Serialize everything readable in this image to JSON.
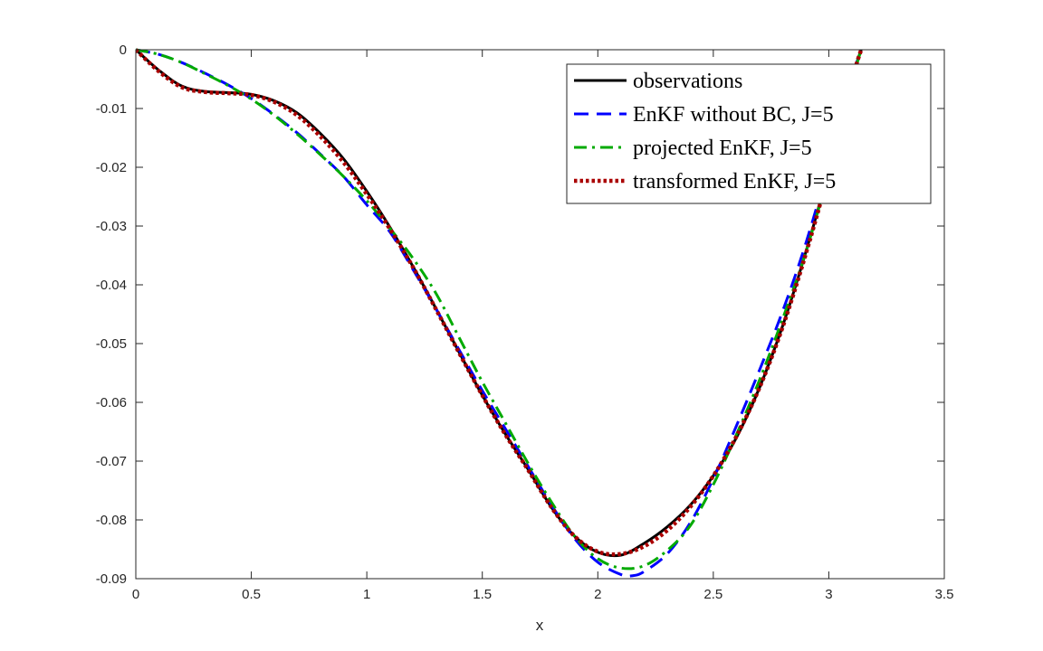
{
  "chart_data": {
    "type": "line",
    "title": "",
    "xlabel": "x",
    "ylabel": "",
    "xlim": [
      0,
      3.5
    ],
    "ylim": [
      -0.09,
      0
    ],
    "xticks": [
      "0",
      "0.5",
      "1",
      "1.5",
      "2",
      "2.5",
      "3",
      "3.5"
    ],
    "yticks": [
      "0",
      "-0.01",
      "-0.02",
      "-0.03",
      "-0.04",
      "-0.05",
      "-0.06",
      "-0.07",
      "-0.08",
      "-0.09"
    ],
    "legend_position": "top-right",
    "series": [
      {
        "name": "observations",
        "color": "#000000",
        "style": "solid",
        "x": [
          0,
          0.1,
          0.2,
          0.3,
          0.4,
          0.5,
          0.6,
          0.7,
          0.8,
          0.9,
          1.0,
          1.1,
          1.2,
          1.3,
          1.4,
          1.5,
          1.6,
          1.7,
          1.8,
          1.9,
          2.0,
          2.1,
          2.2,
          2.3,
          2.4,
          2.5,
          2.6,
          2.7,
          2.8,
          2.9,
          3.0,
          3.1,
          3.14
        ],
        "y": [
          0,
          -0.0035,
          -0.0062,
          -0.0071,
          -0.0073,
          -0.0076,
          -0.0087,
          -0.0108,
          -0.0143,
          -0.0186,
          -0.0241,
          -0.0302,
          -0.0369,
          -0.0441,
          -0.0515,
          -0.0588,
          -0.0654,
          -0.0715,
          -0.0779,
          -0.0828,
          -0.0855,
          -0.086,
          -0.084,
          -0.0812,
          -0.0775,
          -0.0725,
          -0.066,
          -0.0575,
          -0.047,
          -0.0345,
          -0.0205,
          -0.005,
          0.0
        ]
      },
      {
        "name": "EnKF without BC, J=5",
        "color": "#0000ff",
        "style": "dashed",
        "x": [
          0,
          0.1,
          0.2,
          0.3,
          0.4,
          0.5,
          0.6,
          0.7,
          0.8,
          0.9,
          1.0,
          1.1,
          1.2,
          1.3,
          1.4,
          1.5,
          1.6,
          1.7,
          1.8,
          1.9,
          2.0,
          2.1,
          2.15,
          2.2,
          2.3,
          2.4,
          2.5,
          2.6,
          2.7,
          2.8,
          2.9,
          3.0,
          3.1,
          3.14
        ],
        "y": [
          0,
          -0.0008,
          -0.0022,
          -0.004,
          -0.006,
          -0.0083,
          -0.0111,
          -0.0142,
          -0.0178,
          -0.0216,
          -0.0264,
          -0.031,
          -0.0374,
          -0.0441,
          -0.0511,
          -0.058,
          -0.0645,
          -0.071,
          -0.0775,
          -0.0832,
          -0.0872,
          -0.0893,
          -0.0895,
          -0.0888,
          -0.0858,
          -0.0805,
          -0.073,
          -0.064,
          -0.0545,
          -0.0445,
          -0.033,
          -0.0195,
          -0.005,
          0.0
        ]
      },
      {
        "name": "projected EnKF, J=5",
        "color": "#00aa00",
        "style": "dashdot",
        "x": [
          0,
          0.1,
          0.2,
          0.3,
          0.4,
          0.5,
          0.6,
          0.7,
          0.8,
          0.9,
          1.0,
          1.1,
          1.2,
          1.3,
          1.4,
          1.5,
          1.6,
          1.7,
          1.8,
          1.9,
          2.0,
          2.1,
          2.2,
          2.3,
          2.4,
          2.5,
          2.6,
          2.7,
          2.8,
          2.9,
          3.0,
          3.1,
          3.14
        ],
        "y": [
          0,
          -0.0008,
          -0.0022,
          -0.0041,
          -0.0061,
          -0.0084,
          -0.0112,
          -0.0144,
          -0.0179,
          -0.0216,
          -0.0257,
          -0.0304,
          -0.0355,
          -0.0415,
          -0.049,
          -0.0565,
          -0.0635,
          -0.0705,
          -0.077,
          -0.0828,
          -0.0866,
          -0.0882,
          -0.0878,
          -0.0852,
          -0.081,
          -0.074,
          -0.0655,
          -0.0562,
          -0.0458,
          -0.0345,
          -0.0208,
          -0.0055,
          0.0
        ]
      },
      {
        "name": "transformed EnKF, J=5",
        "color": "#aa0000",
        "style": "dotted",
        "x": [
          0,
          0.1,
          0.2,
          0.3,
          0.4,
          0.5,
          0.6,
          0.7,
          0.8,
          0.9,
          1.0,
          1.1,
          1.2,
          1.3,
          1.4,
          1.5,
          1.6,
          1.7,
          1.8,
          1.9,
          2.0,
          2.1,
          2.2,
          2.3,
          2.4,
          2.5,
          2.6,
          2.7,
          2.8,
          2.9,
          3.0,
          3.1,
          3.14
        ],
        "y": [
          0,
          -0.0037,
          -0.0064,
          -0.0072,
          -0.0074,
          -0.0077,
          -0.0089,
          -0.0112,
          -0.0148,
          -0.0192,
          -0.0246,
          -0.0305,
          -0.037,
          -0.0442,
          -0.0516,
          -0.0588,
          -0.0655,
          -0.0716,
          -0.0779,
          -0.0828,
          -0.0854,
          -0.0858,
          -0.0845,
          -0.0818,
          -0.0778,
          -0.0725,
          -0.0658,
          -0.0575,
          -0.0472,
          -0.0348,
          -0.0208,
          -0.0052,
          0.0
        ]
      }
    ]
  }
}
